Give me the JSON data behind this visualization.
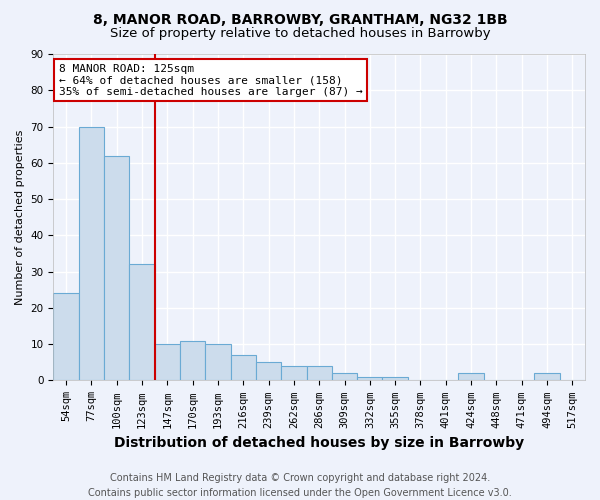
{
  "title1": "8, MANOR ROAD, BARROWBY, GRANTHAM, NG32 1BB",
  "title2": "Size of property relative to detached houses in Barrowby",
  "xlabel": "Distribution of detached houses by size in Barrowby",
  "ylabel": "Number of detached properties",
  "footnote": "Contains HM Land Registry data © Crown copyright and database right 2024.\nContains public sector information licensed under the Open Government Licence v3.0.",
  "categories": [
    "54sqm",
    "77sqm",
    "100sqm",
    "123sqm",
    "147sqm",
    "170sqm",
    "193sqm",
    "216sqm",
    "239sqm",
    "262sqm",
    "286sqm",
    "309sqm",
    "332sqm",
    "355sqm",
    "378sqm",
    "401sqm",
    "424sqm",
    "448sqm",
    "471sqm",
    "494sqm",
    "517sqm"
  ],
  "values": [
    24,
    70,
    62,
    32,
    10,
    11,
    10,
    7,
    5,
    4,
    4,
    2,
    1,
    1,
    0,
    0,
    2,
    0,
    0,
    2,
    0
  ],
  "bar_color": "#ccdcec",
  "bar_edge_color": "#6aaad4",
  "red_line_x": 3.5,
  "annotation_text": "8 MANOR ROAD: 125sqm\n← 64% of detached houses are smaller (158)\n35% of semi-detached houses are larger (87) →",
  "annotation_box_color": "#ffffff",
  "annotation_box_edge_color": "#cc0000",
  "ylim": [
    0,
    90
  ],
  "yticks": [
    0,
    10,
    20,
    30,
    40,
    50,
    60,
    70,
    80,
    90
  ],
  "background_color": "#eef2fb",
  "grid_color": "#ffffff",
  "title1_fontsize": 10,
  "title2_fontsize": 9.5,
  "xlabel_fontsize": 10,
  "ylabel_fontsize": 8,
  "tick_fontsize": 7.5,
  "annotation_fontsize": 8,
  "footnote_fontsize": 7
}
